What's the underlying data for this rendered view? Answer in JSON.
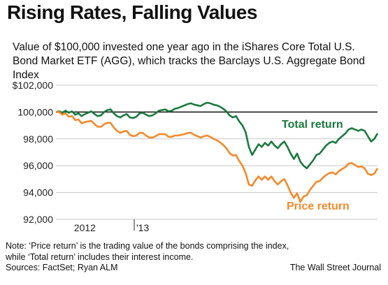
{
  "title": "Rising Rates, Falling Values",
  "subtitle": "Value of $100,000 invested one year ago in the  iShares Core Total U.S. Bond Market ETF (AGG), which tracks the Barclays U.S. Aggregate Bond Index",
  "note": "Note: ‘Price return’ is the trading value of the bonds comprising the index, while ‘Total return’ includes their interest income.",
  "sources": "Sources: FactSet; Ryan ALM",
  "credit": "The Wall Street Journal",
  "colors": {
    "total": "#1a7a3e",
    "price": "#f5892a",
    "reference": "#111111",
    "grid": "#c8c8c8"
  },
  "chart_data": {
    "type": "line",
    "ylim": [
      92000,
      102000
    ],
    "yticks": [
      92000,
      94000,
      96000,
      98000,
      100000,
      102000
    ],
    "ytick_labels": [
      "92,000",
      "94,000",
      "96,000",
      "98,000",
      "100,000",
      "$102,000"
    ],
    "reference_line": 100000,
    "x_tick_labels": [
      {
        "label": "2012",
        "x": 0.09
      },
      {
        "label": "'13",
        "x": 0.25
      }
    ],
    "series": [
      {
        "name": "Total return",
        "x": [
          0,
          0.01,
          0.02,
          0.03,
          0.04,
          0.05,
          0.06,
          0.07,
          0.08,
          0.09,
          0.1,
          0.11,
          0.12,
          0.13,
          0.14,
          0.15,
          0.16,
          0.17,
          0.18,
          0.19,
          0.2,
          0.21,
          0.22,
          0.23,
          0.24,
          0.25,
          0.26,
          0.27,
          0.28,
          0.29,
          0.3,
          0.31,
          0.32,
          0.33,
          0.34,
          0.35,
          0.36,
          0.37,
          0.38,
          0.39,
          0.4,
          0.41,
          0.42,
          0.43,
          0.44,
          0.45,
          0.46,
          0.47,
          0.48,
          0.49,
          0.5,
          0.51,
          0.52,
          0.53,
          0.54,
          0.55,
          0.56,
          0.57,
          0.58,
          0.59,
          0.6,
          0.61,
          0.62,
          0.63,
          0.64,
          0.65,
          0.66,
          0.67,
          0.68,
          0.69,
          0.7,
          0.71,
          0.72,
          0.73,
          0.74,
          0.75,
          0.76,
          0.77,
          0.78,
          0.79,
          0.8,
          0.81,
          0.82,
          0.83,
          0.84,
          0.85,
          0.86,
          0.87,
          0.88,
          0.89,
          0.9,
          0.91,
          0.92,
          0.93,
          0.94,
          0.95,
          0.96,
          0.97,
          0.98,
          0.99,
          1.0
        ],
        "values": [
          100000,
          100050,
          99950,
          100100,
          99950,
          100050,
          99800,
          99900,
          99700,
          99850,
          99950,
          100050,
          99850,
          99700,
          99750,
          100000,
          100150,
          100200,
          99900,
          99700,
          99600,
          99750,
          99850,
          99600,
          99550,
          99650,
          99900,
          99950,
          99800,
          99700,
          99750,
          99900,
          100100,
          100150,
          100200,
          100050,
          100100,
          100250,
          100300,
          100400,
          100500,
          100600,
          100650,
          100550,
          100500,
          100450,
          100600,
          100700,
          100650,
          100550,
          100500,
          100400,
          100250,
          100050,
          99750,
          99600,
          99700,
          99300,
          99000,
          98500,
          97400,
          96800,
          97200,
          97600,
          97400,
          97700,
          97500,
          97800,
          97500,
          97300,
          97600,
          97800,
          97400,
          96900,
          96500,
          96900,
          96300,
          96000,
          95800,
          96100,
          96400,
          96800,
          96900,
          97200,
          97500,
          97700,
          97800,
          97700,
          98000,
          98200,
          98400,
          98700,
          98800,
          98700,
          98600,
          98700,
          98600,
          98200,
          97800,
          98000,
          98400
        ]
      },
      {
        "name": "Price return",
        "x": [
          0,
          0.01,
          0.02,
          0.03,
          0.04,
          0.05,
          0.06,
          0.07,
          0.08,
          0.09,
          0.1,
          0.11,
          0.12,
          0.13,
          0.14,
          0.15,
          0.16,
          0.17,
          0.18,
          0.19,
          0.2,
          0.21,
          0.22,
          0.23,
          0.24,
          0.25,
          0.26,
          0.27,
          0.28,
          0.29,
          0.3,
          0.31,
          0.32,
          0.33,
          0.34,
          0.35,
          0.36,
          0.37,
          0.38,
          0.39,
          0.4,
          0.41,
          0.42,
          0.43,
          0.44,
          0.45,
          0.46,
          0.47,
          0.48,
          0.49,
          0.5,
          0.51,
          0.52,
          0.53,
          0.54,
          0.55,
          0.56,
          0.57,
          0.58,
          0.59,
          0.6,
          0.61,
          0.62,
          0.63,
          0.64,
          0.65,
          0.66,
          0.67,
          0.68,
          0.69,
          0.7,
          0.71,
          0.72,
          0.73,
          0.74,
          0.75,
          0.76,
          0.77,
          0.78,
          0.79,
          0.8,
          0.81,
          0.82,
          0.83,
          0.84,
          0.85,
          0.86,
          0.87,
          0.88,
          0.89,
          0.9,
          0.91,
          0.92,
          0.93,
          0.94,
          0.95,
          0.96,
          0.97,
          0.98,
          0.99,
          1.0
        ],
        "values": [
          100000,
          100000,
          99800,
          99900,
          99650,
          99700,
          99400,
          99450,
          99150,
          99250,
          99300,
          99350,
          99100,
          98900,
          98900,
          99100,
          99200,
          99200,
          98850,
          98600,
          98450,
          98550,
          98600,
          98300,
          98200,
          98250,
          98450,
          98450,
          98250,
          98100,
          98100,
          98200,
          98350,
          98350,
          98350,
          98150,
          98150,
          98250,
          98250,
          98300,
          98350,
          98450,
          98450,
          98300,
          98200,
          98100,
          98200,
          98250,
          98150,
          98000,
          97900,
          97750,
          97550,
          97300,
          96950,
          96750,
          96800,
          96350,
          96000,
          95450,
          94600,
          94500,
          94900,
          95200,
          94950,
          95200,
          94950,
          95200,
          94850,
          94600,
          94850,
          95000,
          94550,
          94000,
          93600,
          93950,
          93300,
          93700,
          93800,
          94200,
          94500,
          94800,
          94850,
          95100,
          95300,
          95450,
          95500,
          95350,
          95600,
          95750,
          95900,
          96150,
          96200,
          96050,
          95900,
          95950,
          95800,
          95400,
          95300,
          95400,
          95800
        ]
      }
    ]
  }
}
